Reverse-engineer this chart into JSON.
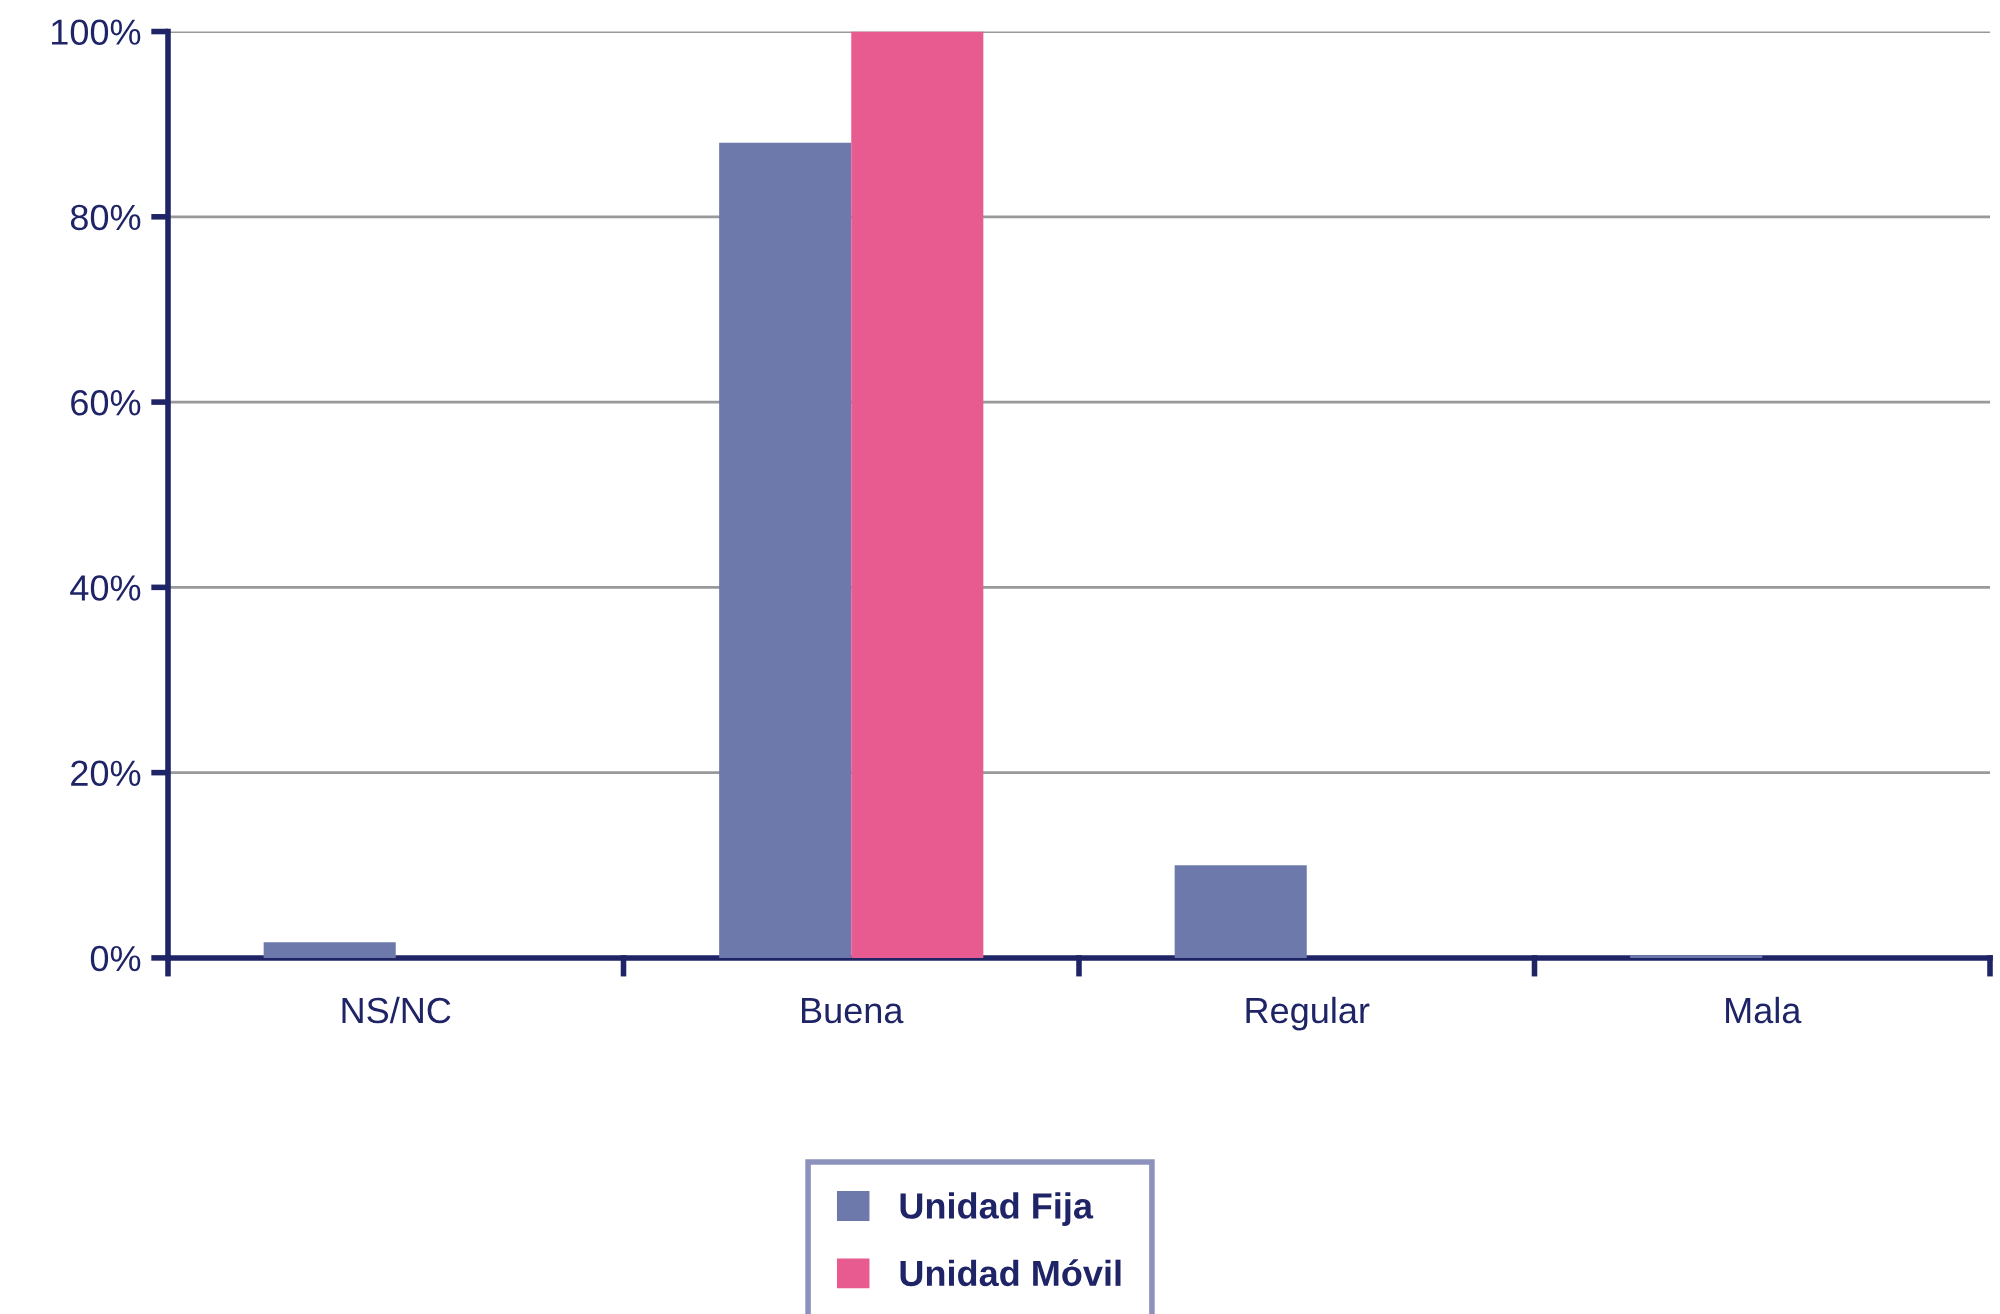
{
  "chart_data": {
    "type": "bar",
    "categories": [
      "NS/NC",
      "Buena",
      "Regular",
      "Mala"
    ],
    "series": [
      {
        "name": "Unidad Fija",
        "color": "#6d78ab",
        "values": [
          1.7,
          88,
          10,
          0.3
        ]
      },
      {
        "name": "Unidad Móvil",
        "color": "#e75b91",
        "values": [
          0,
          100,
          0,
          0
        ]
      }
    ],
    "ylim": [
      0,
      100
    ],
    "yticks": [
      {
        "value": 0,
        "label": "0%"
      },
      {
        "value": 20,
        "label": "20%"
      },
      {
        "value": 40,
        "label": "40%"
      },
      {
        "value": 60,
        "label": "60%"
      },
      {
        "value": 80,
        "label": "80%"
      },
      {
        "value": 100,
        "label": "100%"
      }
    ],
    "grid": "y",
    "legend": "bottom"
  }
}
